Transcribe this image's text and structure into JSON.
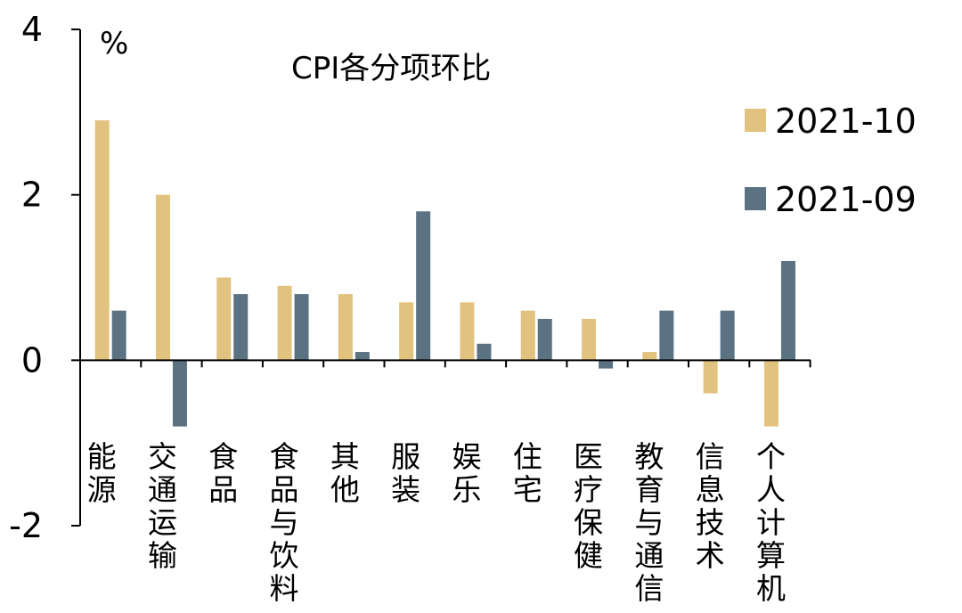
{
  "chart_data": {
    "type": "bar",
    "title": "CPI各分项环比",
    "unit": "%",
    "categories": [
      "能源",
      "交通运输",
      "食品",
      "食品与饮料",
      "其他",
      "服装",
      "娱乐",
      "住宅",
      "医疗保健",
      "教育与通信",
      "信息技术",
      "个人计算机"
    ],
    "series": [
      {
        "name": "2021-10",
        "color": "#E2C27F",
        "values": [
          2.9,
          2.0,
          1.0,
          0.9,
          0.8,
          0.7,
          0.7,
          0.6,
          0.5,
          0.1,
          -0.4,
          -0.8
        ]
      },
      {
        "name": "2021-09",
        "color": "#5B7283",
        "values": [
          0.6,
          -0.8,
          0.8,
          0.8,
          0.1,
          1.8,
          0.2,
          0.5,
          -0.1,
          0.6,
          0.6,
          1.2
        ]
      }
    ],
    "ylim": [
      -2,
      4
    ],
    "yticks": [
      -2,
      0,
      2,
      4
    ],
    "ytick_labels": [
      "-2",
      "0",
      "2",
      "4"
    ],
    "grid": false,
    "legend_position": "right"
  }
}
